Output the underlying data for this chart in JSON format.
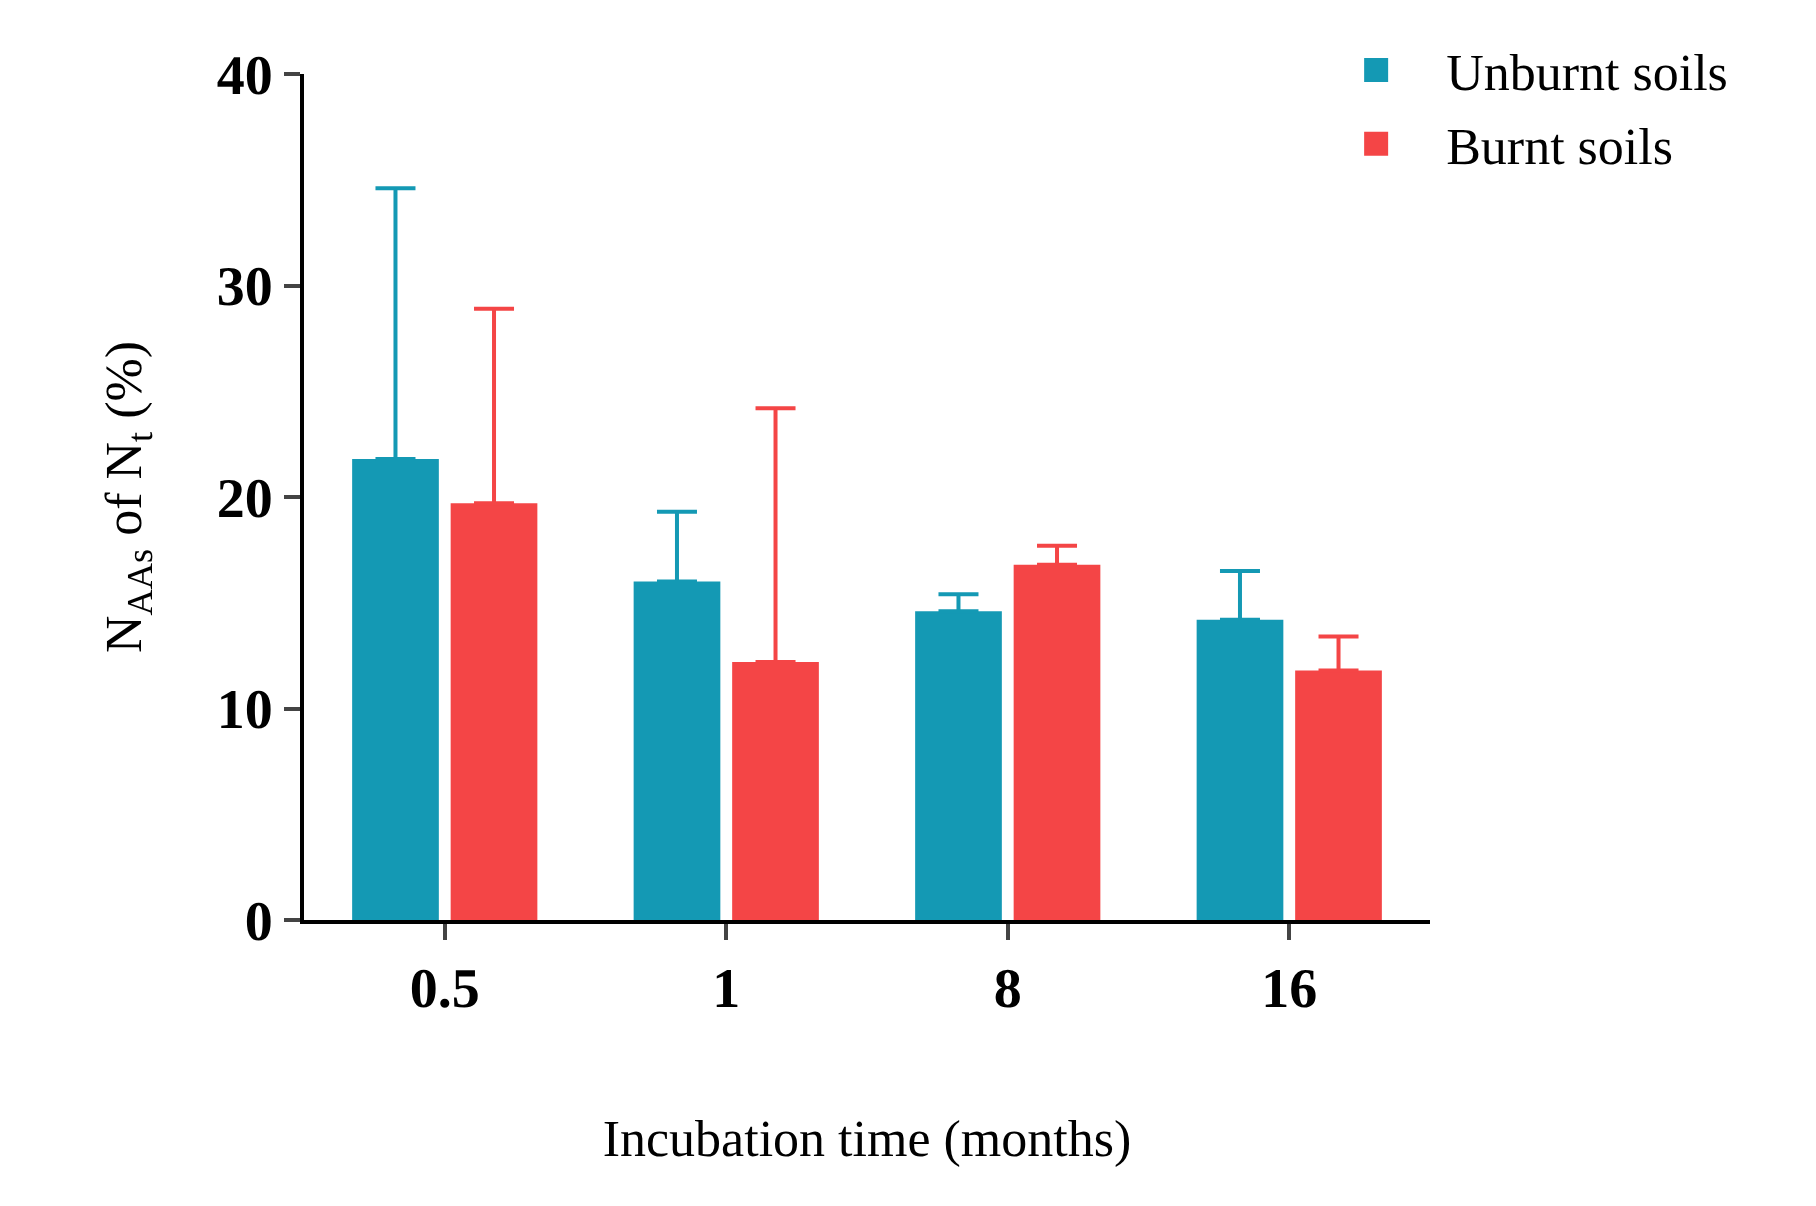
{
  "chart_data": {
    "type": "bar",
    "xlabel": "Incubation time (months)",
    "ylabel": "N$_{AAs}$ of N$_{t}$ (%)",
    "categories": [
      "0.5",
      "1",
      "8",
      "16"
    ],
    "series": [
      {
        "name": "Unburnt soils",
        "color": "#1499b4",
        "values": [
          21.8,
          16.0,
          14.6,
          14.2
        ],
        "errors": [
          [
            21.8,
            34.6
          ],
          [
            16.0,
            19.3
          ],
          [
            14.6,
            15.4
          ],
          [
            14.2,
            16.5
          ]
        ]
      },
      {
        "name": "Burnt soils",
        "color": "#f44546",
        "values": [
          19.7,
          12.2,
          16.8,
          11.8
        ],
        "errors": [
          [
            19.7,
            28.9
          ],
          [
            12.2,
            24.2
          ],
          [
            16.8,
            17.7
          ],
          [
            11.8,
            13.4
          ]
        ]
      }
    ],
    "ylim": [
      0,
      40
    ],
    "yticks": [
      0,
      10,
      20,
      30,
      40
    ],
    "legend": "top right"
  }
}
